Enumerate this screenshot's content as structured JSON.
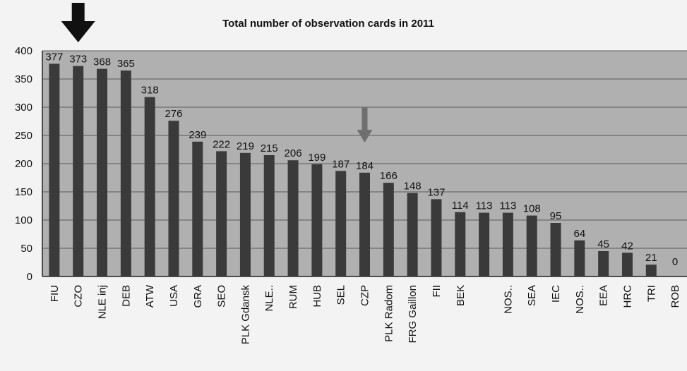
{
  "chart_data": {
    "type": "bar",
    "title": "Total number of observation cards in 2011",
    "xlabel": "",
    "ylabel": "",
    "ylim": [
      0,
      400
    ],
    "yticks": [
      0,
      50,
      100,
      150,
      200,
      250,
      300,
      350,
      400
    ],
    "grid": true,
    "categories": [
      "FIU",
      "CZO",
      "NLE inj",
      "DEB",
      "ATW",
      "USA",
      "GRA",
      "SEO",
      "PLK Gdansk",
      "NLE..",
      "RUM",
      "HUB",
      "SEL",
      "CZP",
      "PLK Radom",
      "FRG Gaillon",
      "FII",
      "BEK",
      "",
      "NOS..",
      "SEA",
      "IEC",
      "NOS..",
      "EEA",
      "HRC",
      "TRI",
      "ROB"
    ],
    "values": [
      377,
      373,
      368,
      365,
      318,
      276,
      239,
      222,
      219,
      215,
      206,
      199,
      187,
      184,
      166,
      148,
      137,
      114,
      113,
      113,
      108,
      95,
      64,
      45,
      42,
      21,
      0
    ],
    "highlight_arrows": [
      {
        "category": "CZO",
        "color": "#111111"
      },
      {
        "category": "CZP",
        "color": "#6f6f6f"
      }
    ],
    "colors": {
      "bar": "#3a3a3a",
      "plot_bg": "#b0b0b0",
      "gridline": "#5a5a5a"
    }
  }
}
